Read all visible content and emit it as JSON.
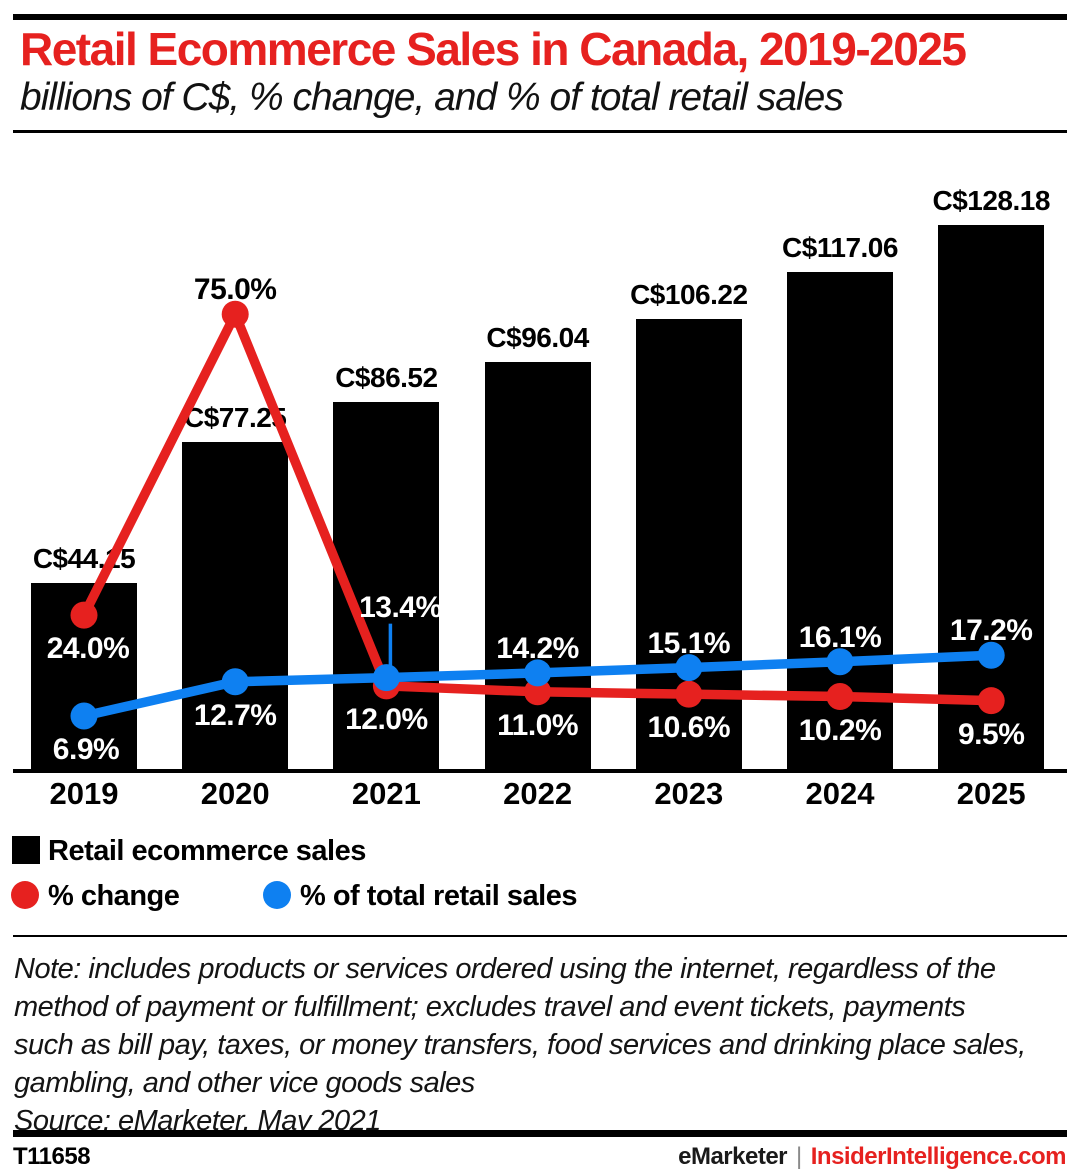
{
  "header": {
    "title": "Retail Ecommerce Sales in Canada, 2019-2025",
    "subtitle": "billions of C$, % change, and % of total retail sales"
  },
  "colors": {
    "red": "#e6211f",
    "blue": "#0e80f1",
    "black": "#000000"
  },
  "chart_data": {
    "type": "bar+line",
    "title": "Retail Ecommerce Sales in Canada, 2019-2025",
    "subtitle": "billions of C$, % change, and % of total retail sales",
    "categories": [
      "2019",
      "2020",
      "2021",
      "2022",
      "2023",
      "2024",
      "2025"
    ],
    "ylim_bar_billions": [
      0,
      135
    ],
    "bar_series": {
      "name": "Retail ecommerce sales",
      "unit": "billions of C$",
      "color": "#000000",
      "values": [
        44.15,
        77.25,
        86.52,
        96.04,
        106.22,
        117.06,
        128.18
      ],
      "labels": [
        "C$44.15",
        "C$77.25",
        "C$86.52",
        "C$96.04",
        "C$106.22",
        "C$117.06",
        "C$128.18"
      ]
    },
    "line_series": [
      {
        "name": "% change",
        "color": "#e6211f",
        "values": [
          24.0,
          75.0,
          12.0,
          11.0,
          10.6,
          10.2,
          9.5
        ],
        "labels": [
          "24.0%",
          "75.0%",
          "12.0%",
          "11.0%",
          "10.6%",
          "10.2%",
          "9.5%"
        ],
        "label_positions": [
          "below",
          "above",
          "below",
          "below",
          "below",
          "below",
          "below"
        ],
        "label_colors": [
          "#ffffff",
          "#000000",
          "#ffffff",
          "#ffffff",
          "#ffffff",
          "#ffffff",
          "#ffffff"
        ],
        "label_dx": [
          4,
          0,
          0,
          0,
          0,
          0,
          0
        ]
      },
      {
        "name": "% of total retail sales",
        "color": "#0e80f1",
        "values": [
          6.9,
          12.7,
          13.4,
          14.2,
          15.1,
          16.1,
          17.2
        ],
        "labels": [
          "6.9%",
          "12.7%",
          "13.4%",
          "14.2%",
          "15.1%",
          "16.1%",
          "17.2%"
        ],
        "label_positions": [
          "below",
          "below",
          "above-leader",
          "above",
          "above",
          "above",
          "above"
        ],
        "label_colors": [
          "#ffffff",
          "#ffffff",
          "#ffffff",
          "#ffffff",
          "#ffffff",
          "#ffffff",
          "#ffffff"
        ],
        "label_dx": [
          2,
          0,
          14,
          0,
          0,
          0,
          0
        ]
      }
    ],
    "legend_position": "bottom-left",
    "grid": false
  },
  "legend": {
    "items": [
      {
        "label": "Retail ecommerce sales",
        "swatch": "square",
        "color": "#000000"
      },
      {
        "label": "% change",
        "swatch": "circle",
        "color": "#e6211f"
      },
      {
        "label": "% of total retail sales",
        "swatch": "circle",
        "color": "#0e80f1"
      }
    ]
  },
  "note": {
    "lines": [
      "Note: includes products or services ordered using the internet, regardless of the",
      "method of payment or fulfillment; excludes travel and event tickets, payments",
      "such as bill pay, taxes, or money transfers, food services and drinking place sales,",
      "gambling, and other vice goods sales"
    ],
    "source": "Source: eMarketer, May 2021"
  },
  "footer": {
    "id": "T11658",
    "brand": "eMarketer",
    "separator": "|",
    "site": "InsiderIntelligence.com"
  }
}
